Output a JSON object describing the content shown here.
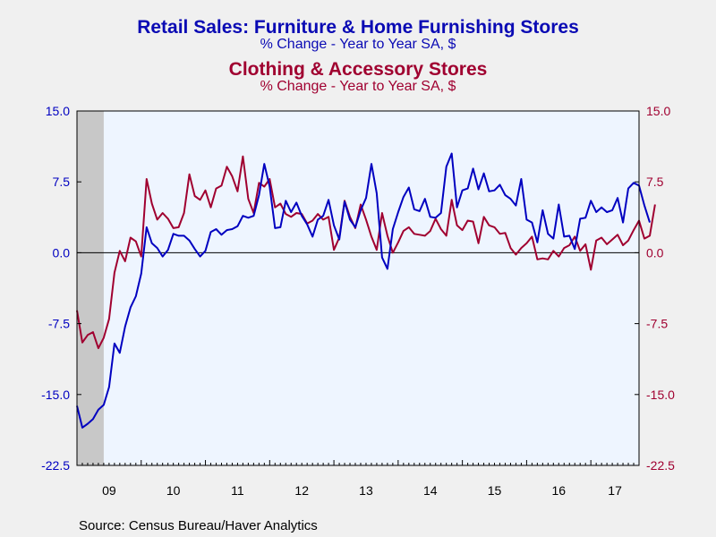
{
  "chart_data": {
    "type": "line",
    "title": "Retail Sales: Furniture & Home Furnishing Stores",
    "subtitle": "% Change - Year to Year   SA, $",
    "title2": "Clothing & Accessory Stores",
    "subtitle2": "% Change - Year to Year   SA, $",
    "source": "Source:  Census Bureau/Haver Analytics",
    "x_tick_labels": [
      "09",
      "10",
      "11",
      "12",
      "13",
      "14",
      "15",
      "16",
      "17"
    ],
    "x_tick_years": [
      2009,
      2010,
      2011,
      2012,
      2013,
      2014,
      2015,
      2016,
      2017
    ],
    "y_tick_labels": [
      "15.0",
      "7.5",
      "0.0",
      "-7.5",
      "-15.0",
      "-22.5"
    ],
    "ylim": [
      -22.5,
      15.0
    ],
    "xlim": [
      "2009-01",
      "2017-10"
    ],
    "recession_shading": [
      "2009-01",
      "2009-06"
    ],
    "colors": {
      "furniture": "#0000c0",
      "clothing": "#a00030",
      "plot_bg": "#eef5ff",
      "shade": "#c8c8c8"
    },
    "start_month": "2009-01",
    "series": [
      {
        "name": "Furniture & Home Furnishing Stores",
        "axis": "left",
        "values": [
          -16.2,
          -18.5,
          -18.1,
          -17.6,
          -16.6,
          -16.1,
          -14.2,
          -9.6,
          -10.6,
          -7.8,
          -5.8,
          -4.6,
          -2.2,
          2.7,
          1.0,
          0.5,
          -0.4,
          0.3,
          2.0,
          1.8,
          1.8,
          1.3,
          0.4,
          -0.4,
          0.2,
          2.2,
          2.5,
          1.9,
          2.4,
          2.5,
          2.8,
          3.9,
          3.7,
          3.9,
          6.1,
          9.4,
          7.0,
          2.6,
          2.7,
          5.5,
          4.3,
          5.3,
          3.9,
          3.0,
          1.7,
          3.5,
          3.9,
          5.6,
          2.9,
          1.4,
          5.4,
          3.5,
          2.7,
          4.5,
          5.8,
          9.4,
          6.3,
          -0.5,
          -1.7,
          2.5,
          4.3,
          5.9,
          6.9,
          4.6,
          4.4,
          5.7,
          3.8,
          3.7,
          4.2,
          9.1,
          10.5,
          4.8,
          6.6,
          6.8,
          8.9,
          6.7,
          8.4,
          6.5,
          6.6,
          7.2,
          6.1,
          5.7,
          5.0,
          7.8,
          3.5,
          3.2,
          1.1,
          4.5,
          2.0,
          1.5,
          5.1,
          1.7,
          1.8,
          0.4,
          3.6,
          3.7,
          5.5,
          4.3,
          4.8,
          4.3,
          4.5,
          5.8,
          3.2,
          6.8,
          7.4,
          7.1,
          5.0,
          3.2
        ]
      },
      {
        "name": "Clothing & Accessory Stores",
        "axis": "right",
        "values": [
          -6.1,
          -9.5,
          -8.7,
          -8.4,
          -10.1,
          -9.0,
          -7.0,
          -2.1,
          0.2,
          -0.9,
          1.6,
          1.2,
          -0.4,
          7.8,
          5.2,
          3.5,
          4.2,
          3.6,
          2.6,
          2.7,
          4.2,
          8.3,
          6.0,
          5.6,
          6.6,
          4.8,
          6.8,
          7.1,
          9.1,
          8.1,
          6.5,
          10.2,
          5.7,
          4.2,
          7.4,
          7.0,
          7.8,
          4.8,
          5.2,
          4.1,
          3.8,
          4.2,
          4.1,
          3.1,
          3.4,
          4.1,
          3.5,
          3.8,
          0.3,
          1.6,
          5.5,
          3.8,
          2.6,
          5.1,
          3.5,
          1.7,
          0.3,
          4.2,
          1.8,
          0.0,
          1.1,
          2.3,
          2.7,
          2.0,
          1.9,
          1.8,
          2.3,
          3.6,
          2.5,
          1.8,
          5.6,
          2.9,
          2.4,
          3.4,
          3.3,
          1.0,
          3.8,
          2.9,
          2.7,
          2.0,
          2.1,
          0.5,
          -0.2,
          0.5,
          1.0,
          1.7,
          -0.7,
          -0.6,
          -0.7,
          0.2,
          -0.4,
          0.5,
          0.8,
          1.7,
          0.2,
          0.9,
          -1.8,
          1.3,
          1.6,
          0.9,
          1.4,
          1.9,
          0.8,
          1.3,
          2.4,
          3.4,
          1.5,
          1.8,
          5.1
        ]
      }
    ]
  }
}
